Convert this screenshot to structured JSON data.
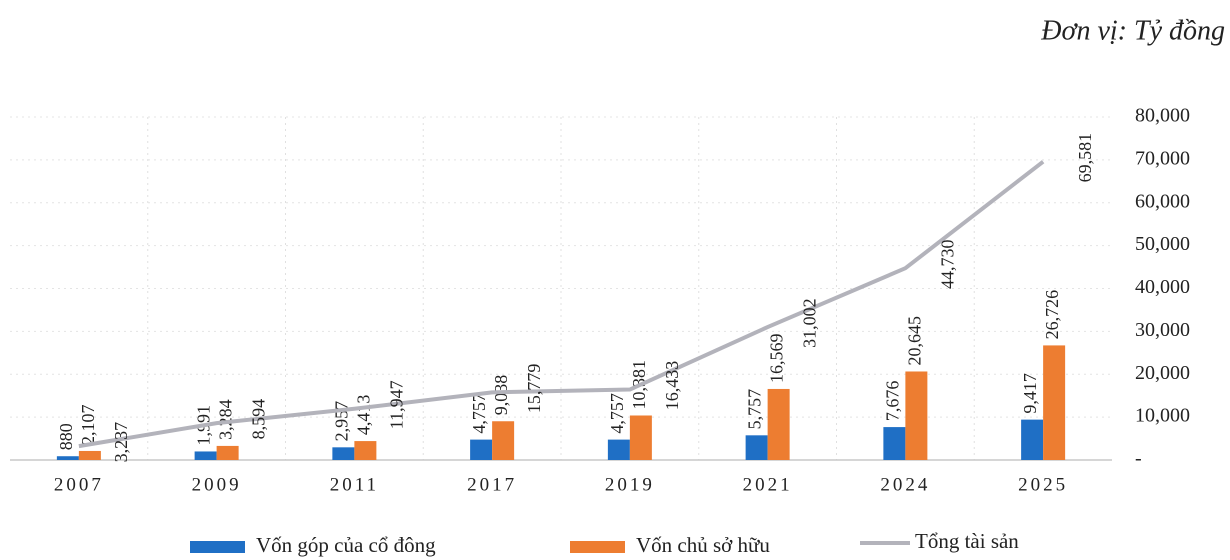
{
  "chart_data": {
    "type": "bar_line",
    "subtitle": "Đơn vị: Tỷ đồng",
    "categories": [
      "2007",
      "2009",
      "2011",
      "2017",
      "2019",
      "2021",
      "2024",
      "2025"
    ],
    "series": [
      {
        "name": "Vốn góp của cổ đông",
        "type": "bar",
        "color": "#1f6fc5",
        "values": [
          880,
          1991,
          2957,
          4757,
          4757,
          5757,
          7676,
          9417
        ],
        "value_labels": [
          "880",
          "1,991",
          "2,957",
          "4,757",
          "4,757",
          "5,757",
          "7,676",
          "9,417"
        ]
      },
      {
        "name": "Vốn chủ sở hữu",
        "type": "bar",
        "color": "#ed7d31",
        "values": [
          2107,
          3284,
          4413,
          9038,
          10381,
          16569,
          20645,
          26726
        ],
        "value_labels": [
          "2,107",
          "3,284",
          "4,413",
          "9,038",
          "10,381",
          "16,569",
          "20,645",
          "26,726"
        ]
      },
      {
        "name": "Tổng tài sản",
        "type": "line",
        "color": "#b3b3bb",
        "values": [
          3237,
          8594,
          11947,
          15779,
          16433,
          31002,
          44730,
          69581
        ],
        "value_labels": [
          "3,237",
          "8,594",
          "11,947",
          "15,779",
          "16,433",
          "31,002",
          "44,730",
          "69,581"
        ]
      }
    ],
    "ylim": [
      0,
      80000
    ],
    "yticks": [
      {
        "value": 0,
        "label": "-"
      },
      {
        "value": 10000,
        "label": "10,000"
      },
      {
        "value": 20000,
        "label": "20,000"
      },
      {
        "value": 30000,
        "label": "30,000"
      },
      {
        "value": 40000,
        "label": "40,000"
      },
      {
        "value": 50000,
        "label": "50,000"
      },
      {
        "value": 60000,
        "label": "60,000"
      },
      {
        "value": 70000,
        "label": "70,000"
      },
      {
        "value": 80000,
        "label": "80,000"
      }
    ],
    "y_axis_position": "right",
    "grid": true
  }
}
